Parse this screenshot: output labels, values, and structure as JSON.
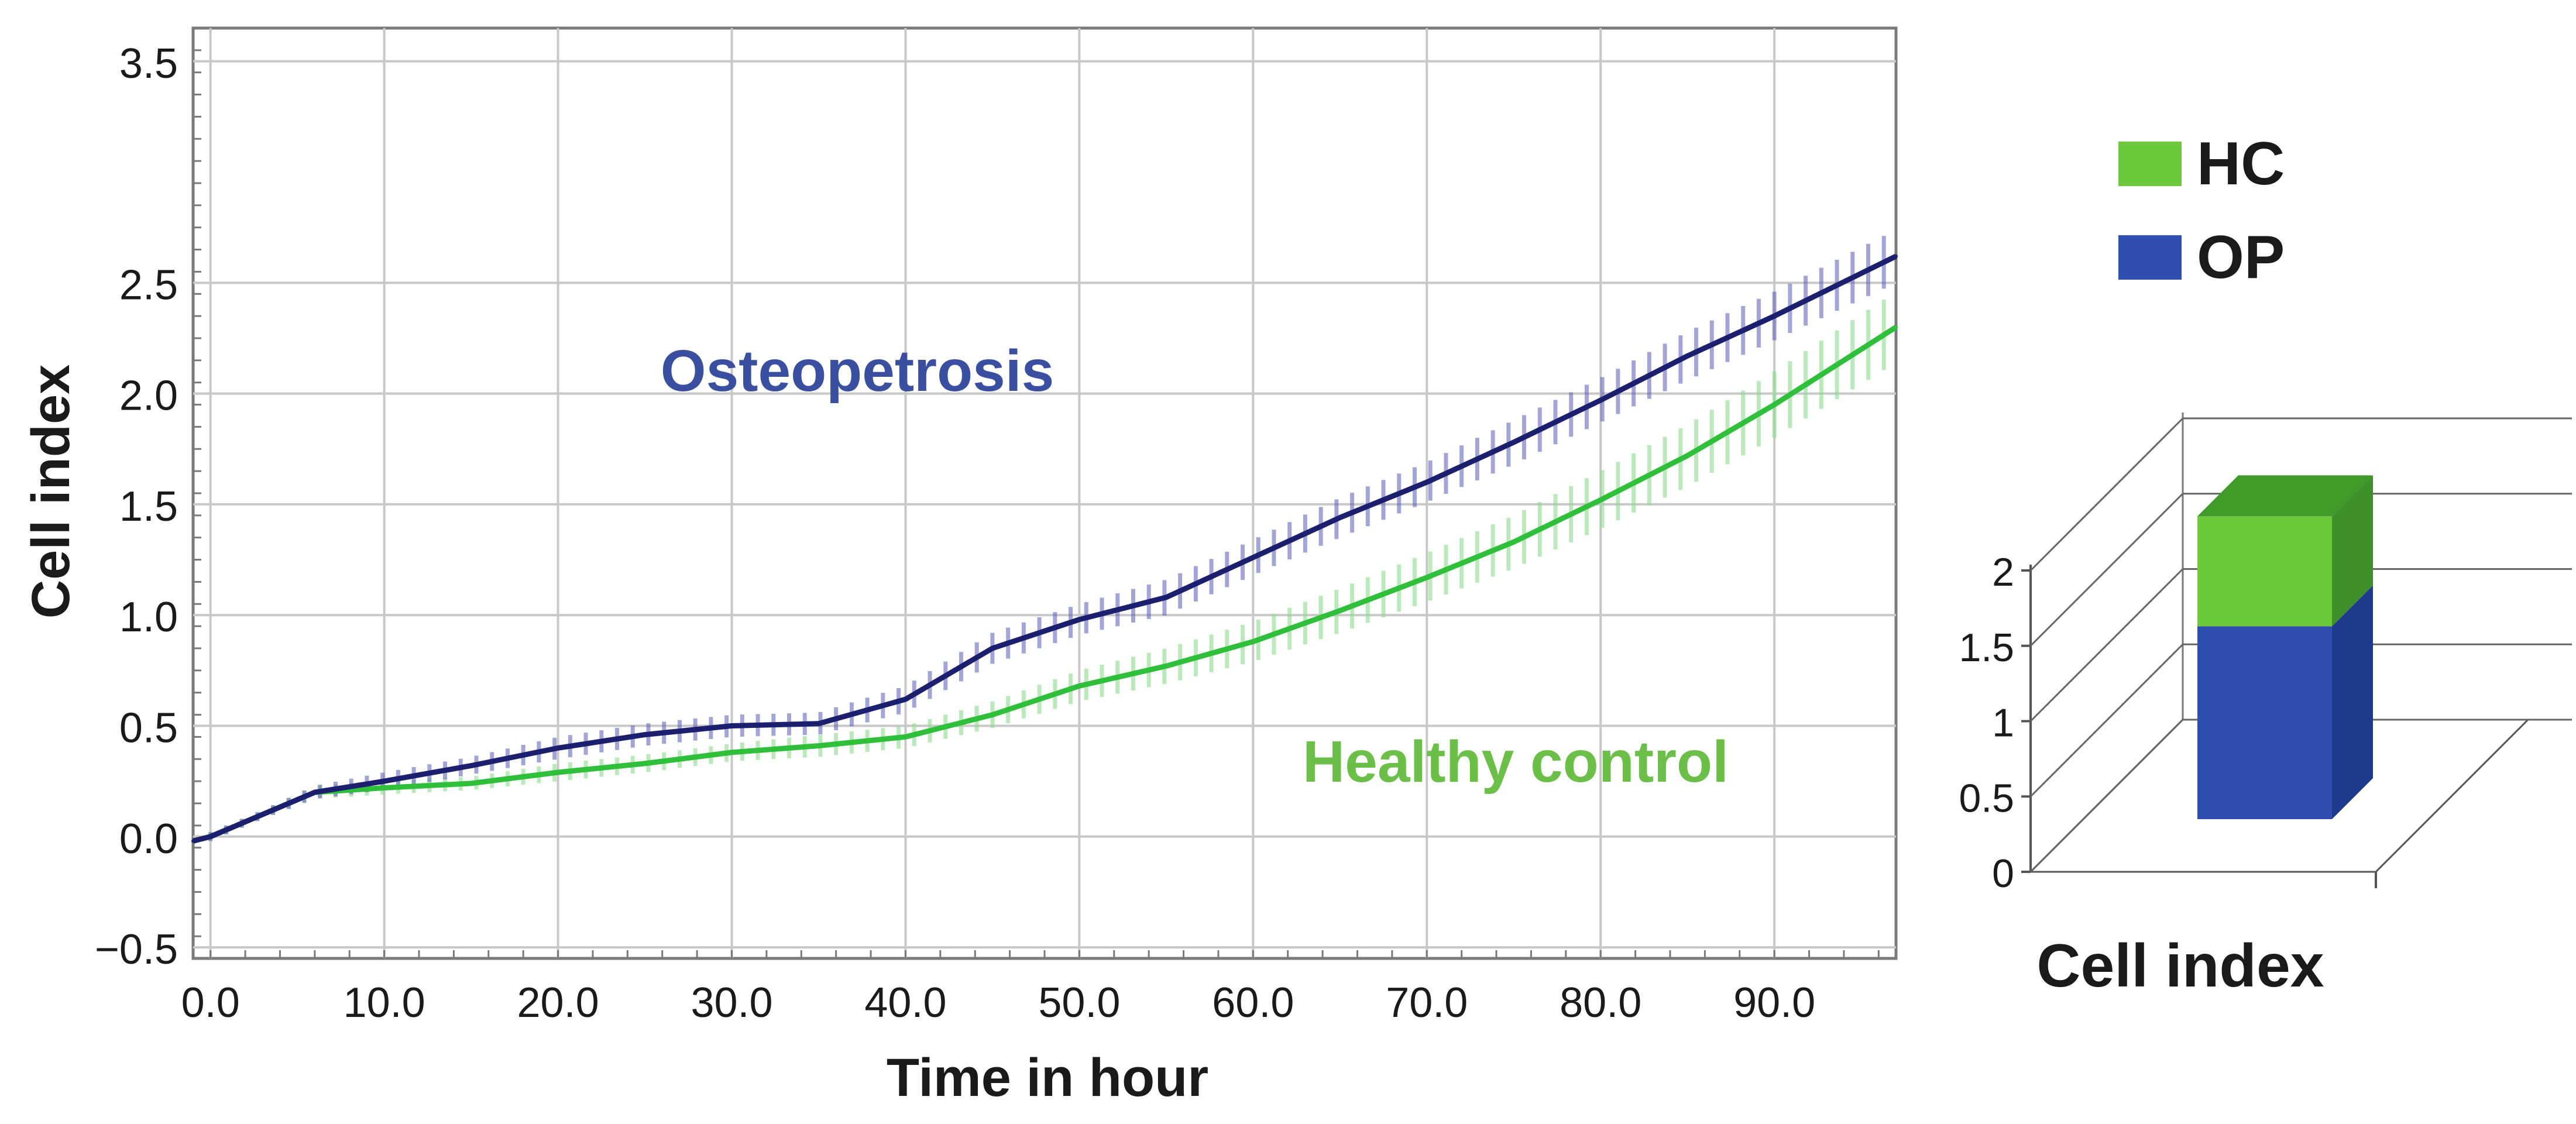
{
  "colors": {
    "op_line": "#1c1f6e",
    "op_band": "#5a5cb8",
    "op_label": "#3a4fa0",
    "hc_line": "#2fbf3a",
    "hc_band": "#8fdc8f",
    "hc_label": "#6cc04a",
    "legend_hc": "#6cc93a",
    "legend_op": "#2f4fae",
    "bar_op_front": "#2f4fae",
    "bar_op_side": "#1f3a8a",
    "bar_hc_front": "#6cc93a",
    "bar_hc_top": "#3f9a2a",
    "bar_hc_side": "#3f8f2a"
  },
  "chart_data": [
    {
      "type": "line",
      "title": "",
      "xlabel": "Time in hour",
      "ylabel": "Cell index",
      "xlim": [
        -1,
        97
      ],
      "ylim": [
        -0.55,
        3.65
      ],
      "xticks": [
        0,
        10,
        20,
        30,
        40,
        50,
        60,
        70,
        80,
        90
      ],
      "xtick_labels": [
        "0.0",
        "10.0",
        "20.0",
        "30.0",
        "40.0",
        "50.0",
        "60.0",
        "70.0",
        "80.0",
        "90.0"
      ],
      "yticks": [
        -0.5,
        0,
        0.5,
        1,
        1.5,
        2,
        2.5,
        3.5
      ],
      "ytick_labels": [
        "−0.5",
        "0.0",
        "0.5",
        "1.0",
        "1.5",
        "2.0",
        "2.5",
        "3.5"
      ],
      "grid": true,
      "annotations": [
        {
          "text": "Osteopetrosis",
          "series": "OP",
          "x": 39,
          "y": 1.75
        },
        {
          "text": "Healthy control",
          "series": "HC",
          "x": 74,
          "y": 0.25
        }
      ],
      "series": [
        {
          "name": "OP",
          "x": [
            -1,
            0,
            3,
            6,
            10,
            15,
            20,
            25,
            30,
            35,
            40,
            45,
            50,
            55,
            60,
            65,
            70,
            75,
            80,
            85,
            90,
            97
          ],
          "y": [
            -0.02,
            0.0,
            0.1,
            0.2,
            0.25,
            0.32,
            0.4,
            0.46,
            0.5,
            0.51,
            0.62,
            0.85,
            0.98,
            1.08,
            1.26,
            1.44,
            1.6,
            1.78,
            1.97,
            2.17,
            2.35,
            2.62
          ],
          "err": [
            0.01,
            0.02,
            0.02,
            0.03,
            0.04,
            0.04,
            0.05,
            0.05,
            0.05,
            0.05,
            0.06,
            0.07,
            0.07,
            0.08,
            0.08,
            0.09,
            0.09,
            0.1,
            0.1,
            0.11,
            0.11,
            0.12
          ]
        },
        {
          "name": "HC",
          "x": [
            -1,
            0,
            3,
            6,
            10,
            15,
            20,
            25,
            30,
            35,
            40,
            45,
            50,
            55,
            60,
            65,
            70,
            75,
            80,
            85,
            90,
            97
          ],
          "y": [
            -0.02,
            0.0,
            0.1,
            0.2,
            0.22,
            0.24,
            0.29,
            0.33,
            0.38,
            0.41,
            0.45,
            0.55,
            0.68,
            0.77,
            0.88,
            1.02,
            1.17,
            1.33,
            1.52,
            1.72,
            1.95,
            2.3
          ],
          "err": [
            0.01,
            0.02,
            0.02,
            0.03,
            0.03,
            0.03,
            0.04,
            0.04,
            0.04,
            0.05,
            0.05,
            0.06,
            0.07,
            0.08,
            0.09,
            0.1,
            0.11,
            0.12,
            0.13,
            0.14,
            0.15,
            0.16
          ]
        }
      ]
    },
    {
      "type": "bar",
      "subtype": "stacked-3d",
      "xlabel": "Cell index",
      "ylim": [
        0,
        2
      ],
      "ytick_labels": [
        "0",
        "0.5",
        "1",
        "1.5",
        "2"
      ],
      "yticks": [
        0,
        0.5,
        1,
        1.5,
        2
      ],
      "categories": [
        ""
      ],
      "series": [
        {
          "name": "OP",
          "values": [
            1.28
          ]
        },
        {
          "name": "HC",
          "values": [
            0.73
          ]
        }
      ]
    }
  ],
  "legend": {
    "placement": "top-right",
    "items": [
      {
        "label": "HC"
      },
      {
        "label": "OP"
      }
    ]
  }
}
